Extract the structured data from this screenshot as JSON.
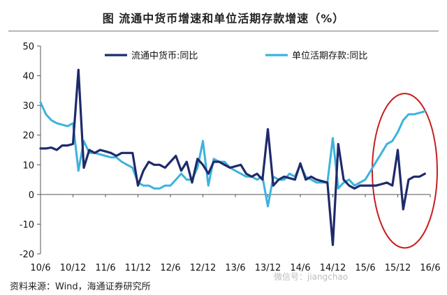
{
  "figure": {
    "title": "图   流通中货币增速和单位活期存款增速（%）",
    "source": "资料来源：Wind，海通证券研究所",
    "watermark": "微信号：jiangchao"
  },
  "colors": {
    "m0_series": "#1f2a6b",
    "deposits_series": "#3bb3dc",
    "highlight_ellipse": "#c81e1e",
    "axis": "#555555"
  },
  "chart_data": {
    "type": "line",
    "title": "流通中货币增速和单位活期存款增速（%）",
    "xlabel": "",
    "ylabel": "",
    "ylim": [
      -20,
      50
    ],
    "yticks": [
      -20,
      -10,
      0,
      10,
      20,
      30,
      40,
      50
    ],
    "grid": false,
    "legend_position": "top",
    "x_start": "2010-06",
    "x_end": "2016-06",
    "x_tick_labels": [
      "10/6",
      "10/12",
      "11/6",
      "11/12",
      "12/6",
      "12/12",
      "13/6",
      "13/12",
      "14/6",
      "14/12",
      "15/6",
      "15/12",
      "16/6"
    ],
    "x_tick_months": [
      0,
      6,
      12,
      18,
      24,
      30,
      36,
      42,
      48,
      54,
      60,
      66,
      72
    ],
    "series": [
      {
        "name": "流通中货币:同比",
        "color": "#1f2a6b",
        "values": [
          15.5,
          15.5,
          15.8,
          15,
          16.5,
          16.5,
          17,
          42,
          9,
          15,
          14,
          15,
          14.5,
          14,
          13,
          14,
          14,
          14,
          3,
          8,
          11,
          10,
          10,
          9,
          11,
          13,
          8,
          11,
          4,
          12,
          10,
          7,
          11,
          11,
          10,
          9,
          9.5,
          10,
          7,
          6,
          7,
          5,
          22,
          3,
          5,
          6,
          5.5,
          5,
          10.5,
          5,
          6,
          5,
          4.5,
          4,
          -17,
          17,
          5,
          3,
          2,
          3,
          3,
          3,
          3,
          3.5,
          4,
          3,
          15,
          -5,
          5,
          6,
          6,
          7
        ]
      },
      {
        "name": "单位活期存款:同比",
        "color": "#3bb3dc",
        "values": [
          31,
          27,
          25,
          24,
          23.5,
          23,
          24,
          8,
          18,
          14,
          14,
          13.5,
          13,
          12.5,
          12.5,
          11,
          10,
          9,
          4,
          3,
          3,
          2,
          2,
          3,
          3,
          5,
          7,
          5,
          5,
          9,
          18,
          3,
          12,
          11,
          11,
          9,
          8,
          7,
          6,
          6,
          5,
          6,
          -4,
          6,
          5,
          5,
          7,
          6,
          10,
          6,
          5,
          4,
          4,
          4,
          19,
          2,
          4,
          5,
          3,
          4,
          5,
          8,
          11,
          14,
          17,
          18,
          21,
          25,
          27,
          27,
          27.5,
          28
        ]
      }
    ],
    "annotations": [
      {
        "type": "ellipse",
        "color": "#c81e1e",
        "x_from": "2015-06",
        "x_to": "2016-06",
        "y_from": -18,
        "y_to": 34
      }
    ]
  }
}
